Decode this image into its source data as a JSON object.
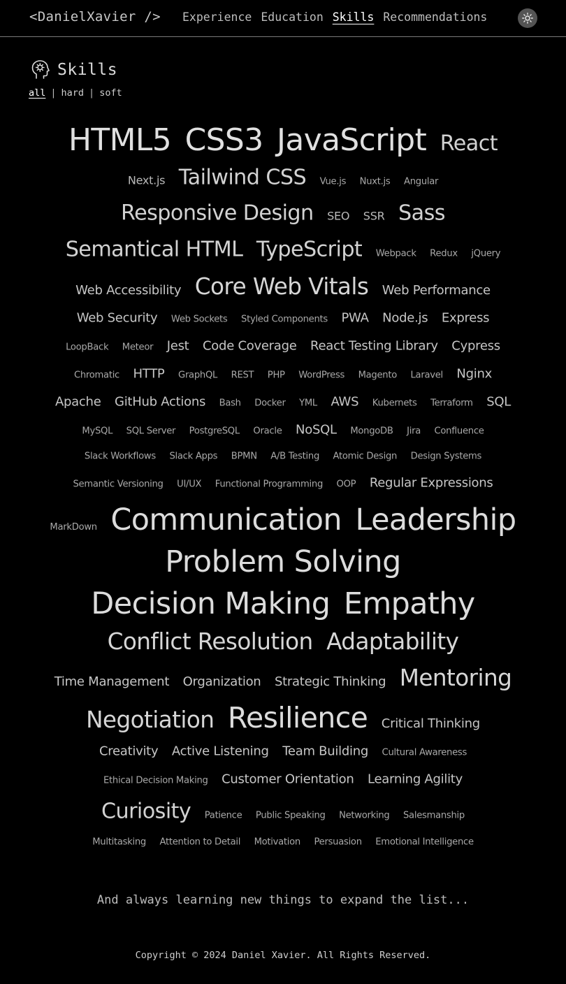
{
  "nav": {
    "logo": "<DanielXavier />",
    "links": [
      "Experience",
      "Education",
      "Skills",
      "Recommendations"
    ],
    "active_link": "Skills",
    "theme_toggle_icon": "sun-icon"
  },
  "section": {
    "title": "Skills",
    "icon": "head-gear-icon",
    "filters": [
      "all",
      "hard",
      "soft"
    ],
    "active_filter": "all",
    "filter_separator": "|"
  },
  "skill_rows": [
    [
      "HTML5",
      "CSS3",
      "JavaScript",
      "React"
    ],
    [
      "Next.js",
      "Tailwind CSS",
      "Vue.js",
      "Nuxt.js",
      "Angular"
    ],
    [
      "Responsive Design",
      "SEO",
      "SSR",
      "Sass"
    ],
    [
      "Semantical HTML",
      "TypeScript",
      "Webpack",
      "Redux",
      "jQuery"
    ],
    [
      "Web Accessibility",
      "Core Web Vitals",
      "Web Performance"
    ],
    [
      "Web Security",
      "Web Sockets",
      "Styled Components",
      "PWA",
      "Node.js",
      "Express"
    ],
    [
      "LoopBack",
      "Meteor",
      "Jest",
      "Code Coverage",
      "React Testing Library",
      "Cypress"
    ],
    [
      "Chromatic",
      "HTTP",
      "GraphQL",
      "REST",
      "PHP",
      "WordPress",
      "Magento",
      "Laravel",
      "Nginx"
    ],
    [
      "Apache",
      "GitHub Actions",
      "Bash",
      "Docker",
      "YML",
      "AWS",
      "Kubernets",
      "Terraform",
      "SQL"
    ],
    [
      "MySQL",
      "SQL Server",
      "PostgreSQL",
      "Oracle",
      "NoSQL",
      "MongoDB",
      "Jira",
      "Confluence"
    ],
    [
      "Slack Workflows",
      "Slack Apps",
      "BPMN",
      "A/B Testing",
      "Atomic Design",
      "Design Systems"
    ],
    [
      "Semantic Versioning",
      "UI/UX",
      "Functional Programming",
      "OOP",
      "Regular Expressions"
    ],
    [
      "MarkDown",
      "Communication",
      "Leadership"
    ],
    [
      "Problem Solving"
    ],
    [
      "Decision Making",
      "Empathy"
    ],
    [
      "Conflict Resolution",
      "Adaptability"
    ],
    [
      "Time Management",
      "Organization",
      "Strategic Thinking",
      "Mentoring"
    ],
    [
      "Negotiation",
      "Resilience",
      "Critical Thinking"
    ],
    [
      "Creativity",
      "Active Listening",
      "Team Building",
      "Cultural Awareness"
    ],
    [
      "Ethical Decision Making",
      "Customer Orientation",
      "Learning Agility"
    ],
    [
      "Curiosity",
      "Patience",
      "Public Speaking",
      "Networking",
      "Salesmanship"
    ],
    [
      "Multitasking",
      "Attention to Detail",
      "Motivation",
      "Persuasion",
      "Emotional Intelligence"
    ]
  ],
  "footer": {
    "note": "And always learning new things to expand the list...",
    "copyright": "Copyright © 2024 Daniel Xavier. All Rights Reserved."
  },
  "colors": {
    "background": "#000000",
    "text": "#d4d4d4",
    "divider": "#7a7a7a",
    "toggle_bg": "#545454"
  }
}
